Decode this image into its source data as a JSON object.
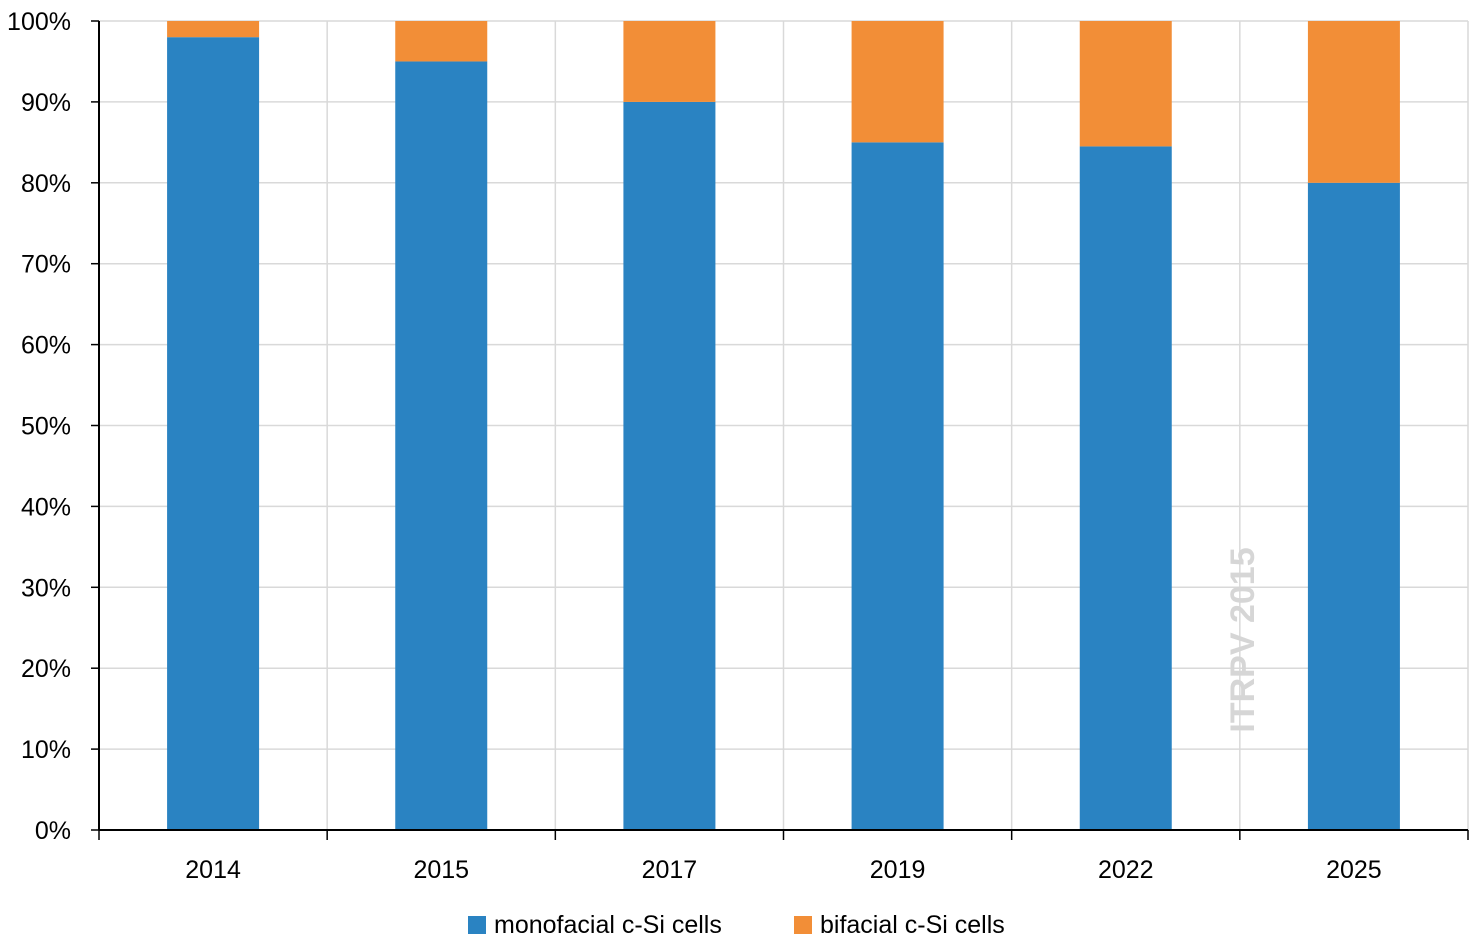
{
  "chart_data": {
    "type": "bar",
    "stacked": true,
    "categories": [
      "2014",
      "2015",
      "2017",
      "2019",
      "2022",
      "2025"
    ],
    "series": [
      {
        "name": "monofacial c-Si cells",
        "color": "#2a83c2",
        "values": [
          98,
          95,
          90,
          85,
          84.5,
          80
        ]
      },
      {
        "name": "bifacial c-Si cells",
        "color": "#f28e37",
        "values": [
          2,
          5,
          10,
          15,
          15.5,
          20
        ]
      }
    ],
    "y_ticks": [
      "0%",
      "10%",
      "20%",
      "30%",
      "40%",
      "50%",
      "60%",
      "70%",
      "80%",
      "90%",
      "100%"
    ],
    "ylim": [
      0,
      100
    ],
    "y_unit": "%",
    "grid": true,
    "legend_position": "bottom",
    "watermark": "ITRPV 2015"
  }
}
